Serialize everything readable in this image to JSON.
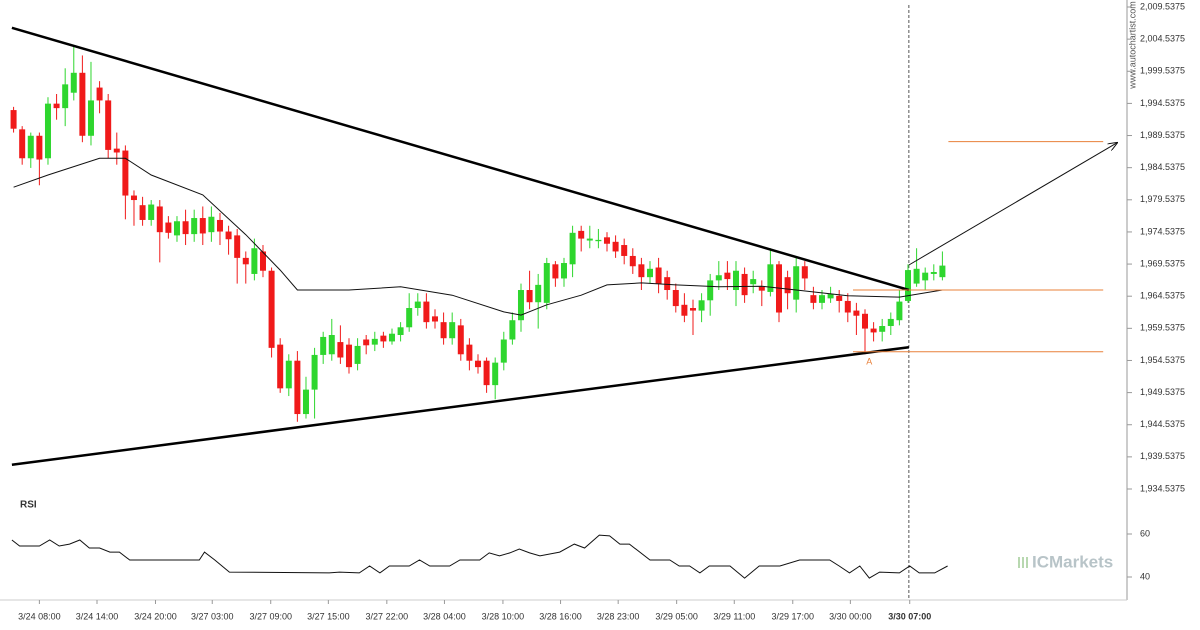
{
  "chart_data": [
    {
      "type": "candlestick",
      "up_color": "#2ed62e",
      "down_color": "#f01a1a",
      "open": [
        1993.5,
        1990.5,
        1986,
        1989.5,
        1986,
        1994.5,
        1993.8,
        1996.2,
        1999.3,
        1989.5,
        1997,
        1995,
        1987.5,
        1987.2,
        1980.2,
        1978.7,
        1976.4,
        1978.5,
        1976,
        1974,
        1976.2,
        1974.2,
        1976.7,
        1974.5,
        1976.4,
        1974.6,
        1974,
        1970.5,
        1968,
        1971.5,
        1968.5,
        1957,
        1950.2,
        1954.5,
        1946.2,
        1950,
        1955.4,
        1955.5,
        1957.4,
        1957,
        1954,
        1957.8,
        1957,
        1958.4,
        1957.5,
        1958.5,
        1959.7,
        1962.7,
        1963.7,
        1961.4,
        1960.5,
        1958,
        1960,
        1957,
        1954.5,
        1954.5,
        1950.7,
        1954.2,
        1957.8,
        1960.8,
        1965.5,
        1963.6,
        1963.5,
        1969.5,
        1967.3,
        1969.5,
        1974.7,
        1973.2,
        1973.1,
        1973.7,
        1973,
        1972.5,
        1970.8,
        1969.5,
        1967.5,
        1969,
        1967.5,
        1965.5,
        1963.2,
        1962.7,
        1962.3,
        1963.9,
        1967,
        1968.2,
        1965.5,
        1968,
        1966.4,
        1966,
        1965.2,
        1969.5,
        1967.5,
        1964,
        1969.2,
        1964.7,
        1963.5,
        1964.2,
        1964.6,
        1963.8,
        1962.3,
        1961.8,
        1959.5,
        1959,
        1959.9,
        1960.8,
        1963.8,
        1966.5,
        1967,
        1968,
        1967.5
      ],
      "high": [
        1994,
        1991,
        1990,
        1990,
        1995.5,
        1996,
        2000,
        2003.6,
        2002,
        2001,
        1998,
        1996,
        1990,
        1988,
        1981,
        1980,
        1979.5,
        1979.5,
        1977,
        1977,
        1978,
        1978,
        1978.5,
        1978.5,
        1977.5,
        1975.5,
        1975,
        1971.5,
        1973.5,
        1972.5,
        1969,
        1958,
        1955.5,
        1956,
        1952,
        1956.5,
        1959,
        1961,
        1960,
        1958,
        1958,
        1958.5,
        1959,
        1959,
        1959.5,
        1960.5,
        1965,
        1965,
        1965,
        1962.5,
        1962,
        1962,
        1961,
        1958,
        1955.5,
        1955,
        1955,
        1959,
        1962,
        1966.5,
        1968.5,
        1968,
        1970.5,
        1970,
        1970.5,
        1975.5,
        1975.5,
        1975.5,
        1975,
        1974.5,
        1974,
        1973.5,
        1972,
        1970.5,
        1970,
        1970.5,
        1968.5,
        1966.5,
        1965,
        1964,
        1965,
        1968,
        1970,
        1970,
        1970,
        1969,
        1968.5,
        1967,
        1972,
        1970,
        1968.5,
        1970.5,
        1970,
        1966,
        1965.5,
        1966,
        1965.5,
        1965,
        1963.5,
        1962.5,
        1960.5,
        1961,
        1962,
        1965.5,
        1969.5,
        1972,
        1969,
        1969.5,
        1971.5
      ],
      "low": [
        1990,
        1985,
        1984.5,
        1981.8,
        1985,
        1992,
        1991,
        1995,
        1988.5,
        1988,
        1993,
        1986,
        1985,
        1976.5,
        1975.5,
        1975.5,
        1975.5,
        1969.8,
        1973.5,
        1973,
        1972.5,
        1973,
        1972.5,
        1973,
        1972.5,
        1971,
        1966.5,
        1966.5,
        1967,
        1967.5,
        1955,
        1949.5,
        1949,
        1945,
        1945.5,
        1945.5,
        1954,
        1954.5,
        1954,
        1952.5,
        1953,
        1955.5,
        1956,
        1956.5,
        1957,
        1957.5,
        1959,
        1961.5,
        1959.5,
        1959.5,
        1957,
        1957,
        1954.5,
        1953,
        1952.5,
        1949.5,
        1948.5,
        1953,
        1957,
        1959,
        1962.5,
        1959.5,
        1962.5,
        1966,
        1966,
        1967.5,
        1971.5,
        1972,
        1972,
        1971.5,
        1970.5,
        1969.5,
        1968,
        1965.5,
        1966.5,
        1965,
        1964,
        1962,
        1960.5,
        1958.5,
        1960.5,
        1961.5,
        1965.5,
        1965.5,
        1963,
        1963.5,
        1965,
        1963,
        1964.5,
        1960.5,
        1962.5,
        1962,
        1965.5,
        1962.5,
        1962.5,
        1963.5,
        1962,
        1960.5,
        1958.5,
        1955.5,
        1957.5,
        1957.5,
        1958.5,
        1960,
        1963.5,
        1966,
        1965.5,
        1967,
        1967
      ],
      "close": [
        1990.6,
        1986,
        1989.5,
        1985.8,
        1994.5,
        1993.8,
        1997.5,
        1999.3,
        1989.5,
        1995,
        1995,
        1987.3,
        1986.9,
        1980.2,
        1979.5,
        1976.4,
        1978.8,
        1974.5,
        1974.4,
        1976.2,
        1974.2,
        1976.7,
        1974.3,
        1976.9,
        1974.6,
        1973.4,
        1970.5,
        1969.5,
        1972,
        1968.5,
        1956.5,
        1950.2,
        1954.5,
        1946.2,
        1950,
        1955.4,
        1958.2,
        1958.5,
        1955,
        1953.5,
        1956.8,
        1956.9,
        1957.9,
        1957.5,
        1958.7,
        1959.7,
        1962.7,
        1963.7,
        1960.5,
        1960.6,
        1958,
        1960.5,
        1955.5,
        1954.5,
        1953.5,
        1950.7,
        1954.2,
        1957.8,
        1960.8,
        1965.5,
        1963.6,
        1966.3,
        1969.7,
        1967.3,
        1969.7,
        1974.4,
        1973.5,
        1973.5,
        1973.3,
        1972.7,
        1971.5,
        1970.8,
        1969.2,
        1967.5,
        1968.8,
        1966.5,
        1965.5,
        1963,
        1961.5,
        1962.3,
        1963.9,
        1967,
        1967.8,
        1967.2,
        1968.5,
        1964.7,
        1967.2,
        1965.4,
        1969.5,
        1962,
        1965,
        1969.2,
        1967.3,
        1963.5,
        1964.7,
        1964.9,
        1963.8,
        1962,
        1961.5,
        1959.5,
        1958.9,
        1959.9,
        1961,
        1963.7,
        1968.6,
        1968.8,
        1968.2,
        1968.3,
        1969.3
      ],
      "overlay": {
        "color": "#111111",
        "x": [
          0,
          4,
          10,
          13,
          16,
          22,
          27,
          31,
          33,
          39,
          45,
          51,
          57,
          59,
          62,
          66,
          69,
          73,
          77,
          82,
          87,
          91,
          97,
          103,
          108
        ],
        "values": [
          1981.5,
          1983.4,
          1986.0,
          1986.0,
          1983.4,
          1980.3,
          1974.1,
          1968.6,
          1965.5,
          1965.5,
          1966.0,
          1964.7,
          1962.1,
          1961.6,
          1963.2,
          1964.7,
          1966.3,
          1966.6,
          1966.3,
          1966.0,
          1966.1,
          1965.5,
          1964.6,
          1964.4,
          1965.5
        ]
      },
      "trend_lines": [
        {
          "color": "#000000",
          "x": [
            -0.2,
            104.1
          ],
          "values": [
            2006.3,
            1965.5
          ]
        },
        {
          "color": "#000000",
          "x": [
            -0.2,
            104.1
          ],
          "values": [
            1938.3,
            1956.6
          ]
        }
      ],
      "levels": [
        {
          "color": "#e8803a",
          "x": [
            97.6,
            126.7
          ],
          "values": [
            1965.5,
            1965.5
          ]
        },
        {
          "color": "#e8803a",
          "x": [
            97.6,
            126.7
          ],
          "values": [
            1955.9,
            1955.9
          ]
        },
        {
          "color": "#e8803a",
          "x": [
            108.7,
            126.7
          ],
          "values": [
            1988.6,
            1988.6
          ]
        }
      ],
      "arrow": {
        "color": "#111111",
        "x": [
          104.1,
          128.3
        ],
        "values": [
          1969.4,
          1988.4
        ]
      },
      "current_x": 104.1,
      "marker": {
        "text": "A",
        "x": 99.5,
        "y": 1954.3,
        "color": "#e8803a"
      },
      "xlim": [
        -0.3,
        129
      ],
      "xticks": [
        {
          "value": 3.0,
          "label": "3/24 08:00"
        },
        {
          "value": 9.7,
          "label": "3/24 14:00"
        },
        {
          "value": 16.5,
          "label": "3/24 20:00"
        },
        {
          "value": 23.1,
          "label": "3/27 03:00"
        },
        {
          "value": 29.9,
          "label": "3/27 09:00"
        },
        {
          "value": 36.6,
          "label": "3/27 15:00"
        },
        {
          "value": 43.4,
          "label": "3/27 22:00"
        },
        {
          "value": 50.1,
          "label": "3/28 04:00"
        },
        {
          "value": 56.9,
          "label": "3/28 10:00"
        },
        {
          "value": 63.6,
          "label": "3/28 16:00"
        },
        {
          "value": 70.3,
          "label": "3/28 23:00"
        },
        {
          "value": 77.1,
          "label": "3/29 05:00"
        },
        {
          "value": 83.8,
          "label": "3/29 11:00"
        },
        {
          "value": 90.6,
          "label": "3/29 17:00"
        },
        {
          "value": 97.3,
          "label": "3/30 00:00"
        },
        {
          "value": 104.2,
          "label": "3/30 07:00"
        }
      ],
      "ylim": [
        1934.5375,
        2009.5375
      ],
      "yticks": [
        {
          "value": 1934.5375,
          "label": "1,934.5375"
        },
        {
          "value": 1939.5375,
          "label": "1,939.5375"
        },
        {
          "value": 1944.5375,
          "label": "1,944.5375"
        },
        {
          "value": 1949.5375,
          "label": "1,949.5375"
        },
        {
          "value": 1954.5375,
          "label": "1,954.5375"
        },
        {
          "value": 1959.5375,
          "label": "1,959.5375"
        },
        {
          "value": 1964.5375,
          "label": "1,964.5375"
        },
        {
          "value": 1969.5375,
          "label": "1,969.5375"
        },
        {
          "value": 1974.5375,
          "label": "1,974.5375"
        },
        {
          "value": 1979.5375,
          "label": "1,979.5375"
        },
        {
          "value": 1984.5375,
          "label": "1,984.5375"
        },
        {
          "value": 1989.5375,
          "label": "1,989.5375"
        },
        {
          "value": 1994.5375,
          "label": "1,994.5375"
        },
        {
          "value": 1999.5375,
          "label": "1,999.5375"
        },
        {
          "value": 2004.5375,
          "label": "2,004.5375"
        },
        {
          "value": 2009.5375,
          "label": "2,009.5375"
        }
      ],
      "watermark": "www.autochartist.com",
      "logo": "ICMarkets"
    },
    {
      "type": "line",
      "title": "RSI",
      "color": "#111111",
      "x": [
        -0.2,
        0.7,
        3.0,
        4.2,
        5.3,
        6.5,
        7.7,
        8.8,
        10,
        11.2,
        12.3,
        13.5,
        21.6,
        22.2,
        23.4,
        25.1,
        36.7,
        37.9,
        40.2,
        41.4,
        42.6,
        43.7,
        46,
        47.2,
        48.4,
        50.7,
        51.9,
        54.2,
        55.3,
        56.5,
        57.7,
        58.8,
        60,
        61.2,
        63.5,
        65.2,
        66.4,
        68.1,
        69.3,
        70.5,
        71.6,
        74,
        76.3,
        77.4,
        78.6,
        79.8,
        80.9,
        83.3,
        85,
        86.7,
        89.1,
        91.4,
        94.9,
        96,
        97.2,
        98.4,
        99.5,
        100.7,
        103,
        104.2,
        105.3,
        107.1,
        108.6
      ],
      "values": [
        57.2,
        54.4,
        54.4,
        57.2,
        54.4,
        55.3,
        57.2,
        53.5,
        53.5,
        51.6,
        51.6,
        47.9,
        47.9,
        51.6,
        47.9,
        42.3,
        41.9,
        42.3,
        41.9,
        45.1,
        41.9,
        45.1,
        45.1,
        47.9,
        45.1,
        45.1,
        47.9,
        47.9,
        51.2,
        49.8,
        51.2,
        53.0,
        51.2,
        49.8,
        51.6,
        55.3,
        53.5,
        59.5,
        59.1,
        55.3,
        55.3,
        47.9,
        47.9,
        45.1,
        45.1,
        41.9,
        45.1,
        45.1,
        39.5,
        45.1,
        45.1,
        47.9,
        47.9,
        45.1,
        41.9,
        45.1,
        39.5,
        42.3,
        41.9,
        45.1,
        41.9,
        41.9,
        45.1
      ],
      "ylim": [
        40,
        60
      ],
      "yticks": [
        40,
        60
      ]
    }
  ]
}
